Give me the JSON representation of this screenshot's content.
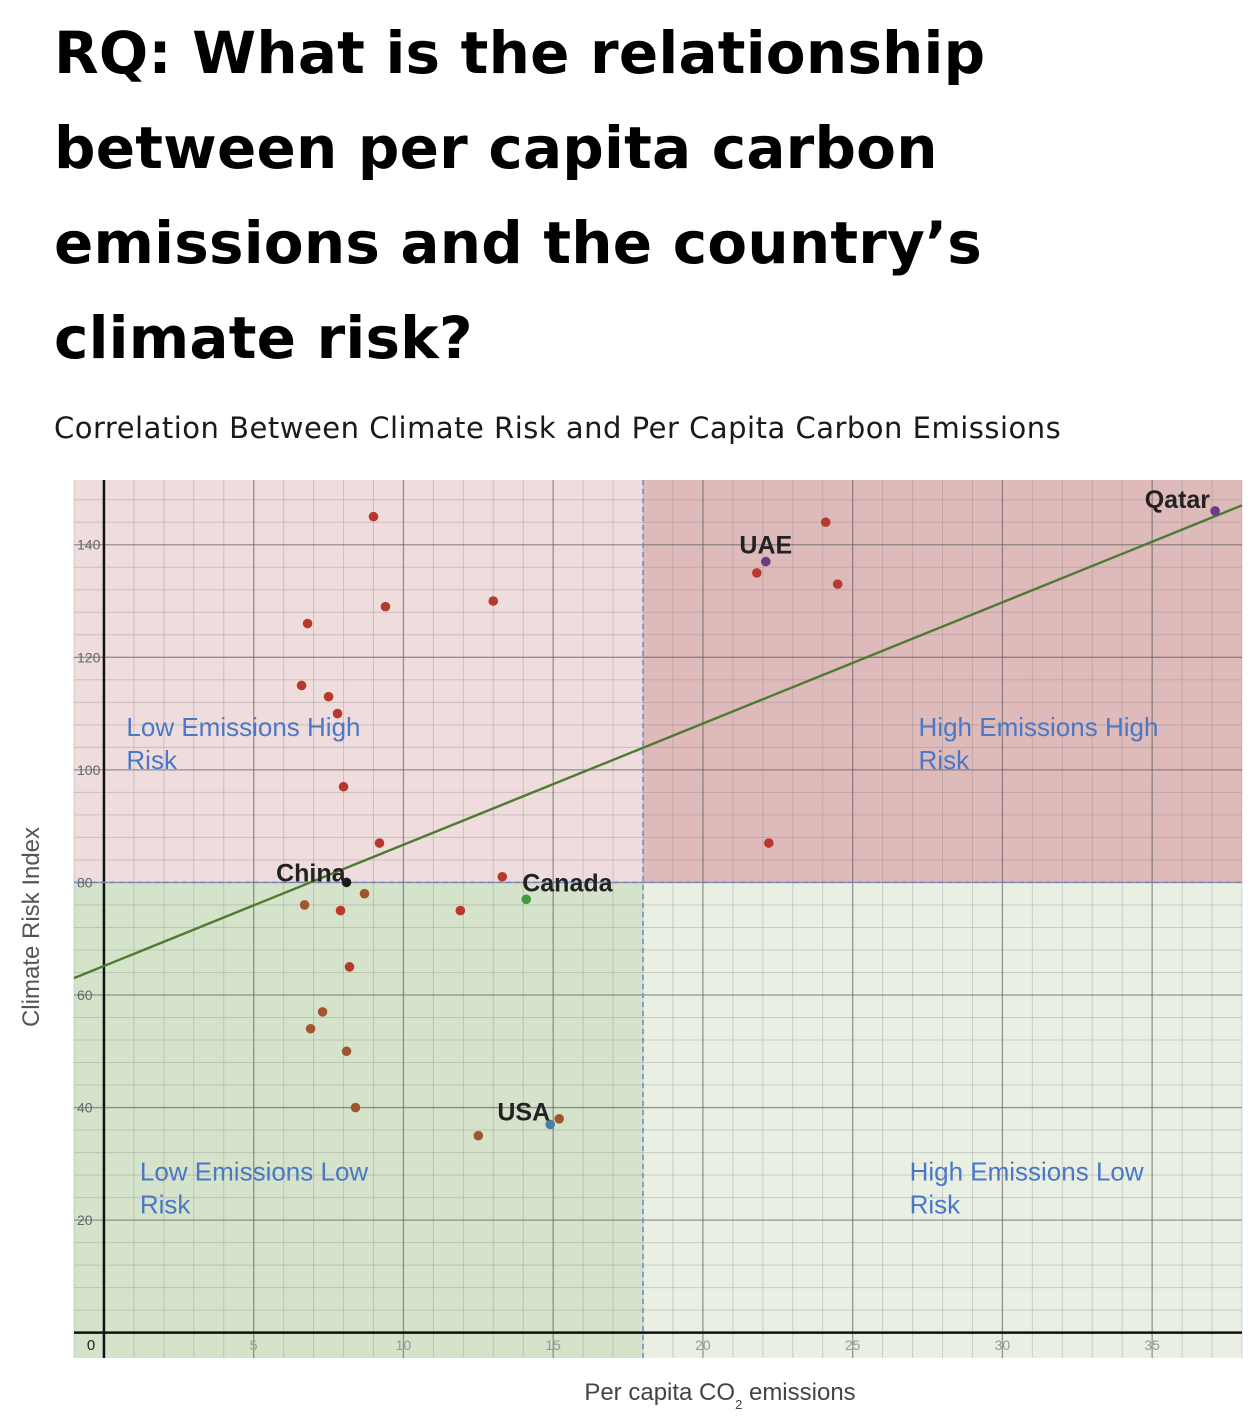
{
  "page": {
    "title": " RQ: What is the relationship between per capita carbon emissions and the country’s climate risk?",
    "subtitle": "Correlation Between Climate Risk and Per Capita Carbon Emissions"
  },
  "colors": {
    "quadrant_low_high": "#efdcdc",
    "quadrant_high_high": "#dfbaba",
    "quadrant_low_low": "#d5e3cb",
    "quadrant_high_low": "#e9efe2",
    "point_default": "#b7382d",
    "point_low": "#a0562d",
    "point_usa": "#4a80a6",
    "point_canada": "#3e9a3e",
    "point_qatar": "#6e3a80",
    "point_uae": "#6e3a80",
    "point_china": "#1a1a1a",
    "trendline": "#4e7a34",
    "quadrant_label": "#4a78c8",
    "divider": "#6b84d6"
  },
  "chart_data": {
    "type": "scatter",
    "title": "Correlation Between Climate Risk and Per Capita Carbon Emissions",
    "xlabel": "Per capita CO2 emissions",
    "xlabel_parts": {
      "pre": "Per capita CO",
      "sub": "2",
      "post": " emissions"
    },
    "ylabel": "Climate Risk Index",
    "xlim": [
      -1,
      38
    ],
    "ylim": [
      -4.5,
      151.5
    ],
    "x_ticks": [
      0,
      5,
      10,
      15,
      20,
      25,
      30,
      35
    ],
    "x_tick_labels": [
      "0",
      "5",
      "10",
      "15",
      "20",
      "25",
      "30",
      "35"
    ],
    "y_ticks": [
      20,
      40,
      60,
      80,
      100,
      120,
      140
    ],
    "y_tick_labels": [
      "20",
      "40",
      "60",
      "80",
      "100",
      "120",
      "140"
    ],
    "x_threshold": 18,
    "y_threshold": 80,
    "trendline": {
      "x1": -1,
      "y1": 63,
      "x2": 38,
      "y2": 147
    },
    "quadrant_labels": [
      {
        "line1": "Low Emissions High",
        "line2": "Risk",
        "x": 0.75,
        "y": 106
      },
      {
        "line1": "High Emissions High",
        "line2": "Risk",
        "x": 27.2,
        "y": 106
      },
      {
        "line1": "Low Emissions Low",
        "line2": "Risk",
        "x": 1.2,
        "y": 27
      },
      {
        "line1": "High Emissions Low",
        "line2": "Risk",
        "x": 26.9,
        "y": 27
      }
    ],
    "points": [
      {
        "x": 9,
        "y": 145,
        "color": "default"
      },
      {
        "x": 9.4,
        "y": 129,
        "color": "default"
      },
      {
        "x": 13,
        "y": 130,
        "color": "default"
      },
      {
        "x": 6.8,
        "y": 126,
        "color": "default"
      },
      {
        "x": 6.6,
        "y": 115,
        "color": "default"
      },
      {
        "x": 7.5,
        "y": 113,
        "color": "default"
      },
      {
        "x": 7.8,
        "y": 110,
        "color": "default"
      },
      {
        "x": 8,
        "y": 97,
        "color": "default"
      },
      {
        "x": 9.2,
        "y": 87,
        "color": "default"
      },
      {
        "x": 13.3,
        "y": 81,
        "color": "default"
      },
      {
        "x": 6.7,
        "y": 76,
        "color": "low"
      },
      {
        "x": 7.9,
        "y": 75,
        "color": "default"
      },
      {
        "x": 8.7,
        "y": 78,
        "color": "low"
      },
      {
        "x": 11.9,
        "y": 75,
        "color": "default"
      },
      {
        "x": 8.2,
        "y": 65,
        "color": "default"
      },
      {
        "x": 7.3,
        "y": 57,
        "color": "low"
      },
      {
        "x": 6.9,
        "y": 54,
        "color": "low"
      },
      {
        "x": 8.1,
        "y": 50,
        "color": "low"
      },
      {
        "x": 8.4,
        "y": 40,
        "color": "low"
      },
      {
        "x": 12.5,
        "y": 35,
        "color": "low"
      },
      {
        "x": 15.2,
        "y": 38,
        "color": "low"
      },
      {
        "x": 21.8,
        "y": 135,
        "color": "default"
      },
      {
        "x": 24.1,
        "y": 144,
        "color": "default"
      },
      {
        "x": 24.5,
        "y": 133,
        "color": "default"
      },
      {
        "x": 22.2,
        "y": 87,
        "color": "default"
      },
      {
        "x": 37.1,
        "y": 146,
        "color": "qatar",
        "label": "Qatar",
        "label_anchor": "end",
        "label_dx": -5,
        "label_dy": -3
      },
      {
        "x": 22.1,
        "y": 137,
        "color": "uae",
        "label": "UAE",
        "label_anchor": "middle",
        "label_dx": 0,
        "label_dy": -8
      },
      {
        "x": 8.1,
        "y": 80,
        "color": "china",
        "label": "China",
        "label_anchor": "end",
        "label_dx": -1,
        "label_dy": -1
      },
      {
        "x": 14.1,
        "y": 77,
        "color": "canada",
        "label": "Canada",
        "label_anchor": "start",
        "label_dx": -4,
        "label_dy": -8
      },
      {
        "x": 14.9,
        "y": 37,
        "color": "usa",
        "label": "USA",
        "label_anchor": "end",
        "label_dx": 0,
        "label_dy": -4
      }
    ]
  }
}
